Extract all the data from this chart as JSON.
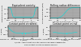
{
  "fig_title": "Figure 14 - Example of a contact geometry : wheel S1002 profile with rail UIC 60E1",
  "subtitle1": "1/20th : equivalent conicity and rolling radius difference,",
  "subtitle2": "and contact points on wheel and rail",
  "top_left": {
    "title": "Equivalent conicity",
    "xlabel": "Lateral displacement (mm)",
    "ylabel": "Equivalent conicity",
    "xlim": [
      -10,
      10
    ],
    "ylim": [
      0.0,
      0.5
    ],
    "bg_color": "#aaaaaa"
  },
  "top_right": {
    "title": "Rolling radius difference",
    "xlabel": "Lateral displacement (mm)",
    "ylabel": "Rolling radius diff (mm)",
    "xlim": [
      -10,
      10
    ],
    "ylim": [
      -4,
      4
    ],
    "bg_color": "#aaaaaa"
  },
  "bottom_left": {
    "title": "Contact point on wheel",
    "xlabel": "y (mm)",
    "ylabel": "z (mm)",
    "xlim": [
      -800,
      800
    ],
    "ylim": [
      -80,
      80
    ],
    "bg_color": "#aaaaaa"
  },
  "bottom_right": {
    "title": "Contact point on rail",
    "xlabel": "y (mm)",
    "ylabel": "z (mm)",
    "xlim": [
      -100,
      100
    ],
    "ylim": [
      -80,
      80
    ],
    "bg_color": "#aaaaaa"
  },
  "background": "#e8e8e8",
  "grid_color": "#888888",
  "line_color": "#00dddd",
  "contact_color": "#00ffff"
}
